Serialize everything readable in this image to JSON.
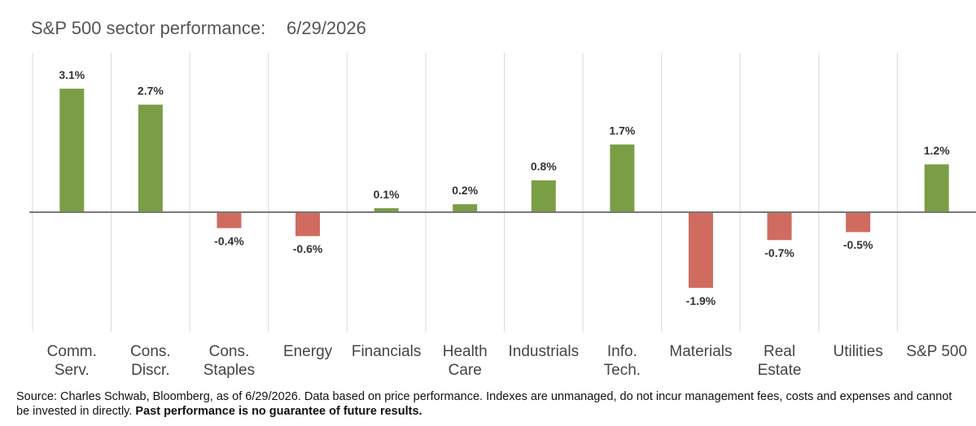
{
  "chart_data": {
    "type": "bar",
    "title": "S&P 500 sector performance:",
    "subtitle": "6/29/2026",
    "categories": [
      "Comm.\nServ.",
      "Cons.\nDiscr.",
      "Cons.\nStaples",
      "Energy",
      "Financials",
      "Health\nCare",
      "Industrials",
      "Info.\nTech.",
      "Materials",
      "Real\nEstate",
      "Utilities",
      "S&P 500"
    ],
    "values": [
      3.1,
      2.7,
      -0.4,
      -0.6,
      0.1,
      0.2,
      0.8,
      1.7,
      -1.9,
      -0.7,
      -0.5,
      1.2
    ],
    "value_labels": [
      "3.1%",
      "2.7%",
      "-0.4%",
      "-0.6%",
      "0.1%",
      "0.2%",
      "0.8%",
      "1.7%",
      "-1.9%",
      "-0.7%",
      "-0.5%",
      "1.2%"
    ],
    "positive_color": "#7a9e45",
    "negative_color": "#d06b5f",
    "ylim": [
      -3,
      4
    ],
    "source": "Source: Charles Schwab, Bloomberg, as of 6/29/2026. Data based on price performance. Indexes are unmanaged, do not incur management fees, costs and expenses and cannot be invested in directly.",
    "disclaimer": "Past performance is no guarantee of future results."
  }
}
